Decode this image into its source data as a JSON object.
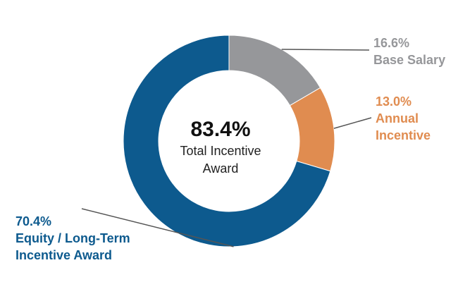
{
  "chart_data": {
    "type": "pie",
    "style": "donut",
    "title": "",
    "center": {
      "value": "83.4%",
      "label_lines": [
        "Total Incentive",
        "Award"
      ]
    },
    "slices": [
      {
        "key": "base-salary",
        "value": 16.6,
        "value_label": "16.6%",
        "label_lines": [
          "Base Salary"
        ],
        "color": "#96979a"
      },
      {
        "key": "annual-incentive",
        "value": 13.0,
        "value_label": "13.0%",
        "label_lines": [
          "Annual",
          "Incentive"
        ],
        "color": "#e08c50"
      },
      {
        "key": "equity-ltia",
        "value": 70.4,
        "value_label": "70.4%",
        "label_lines": [
          "Equity / Long-Term",
          "Incentive Award"
        ],
        "color": "#0d5a8e"
      }
    ]
  }
}
